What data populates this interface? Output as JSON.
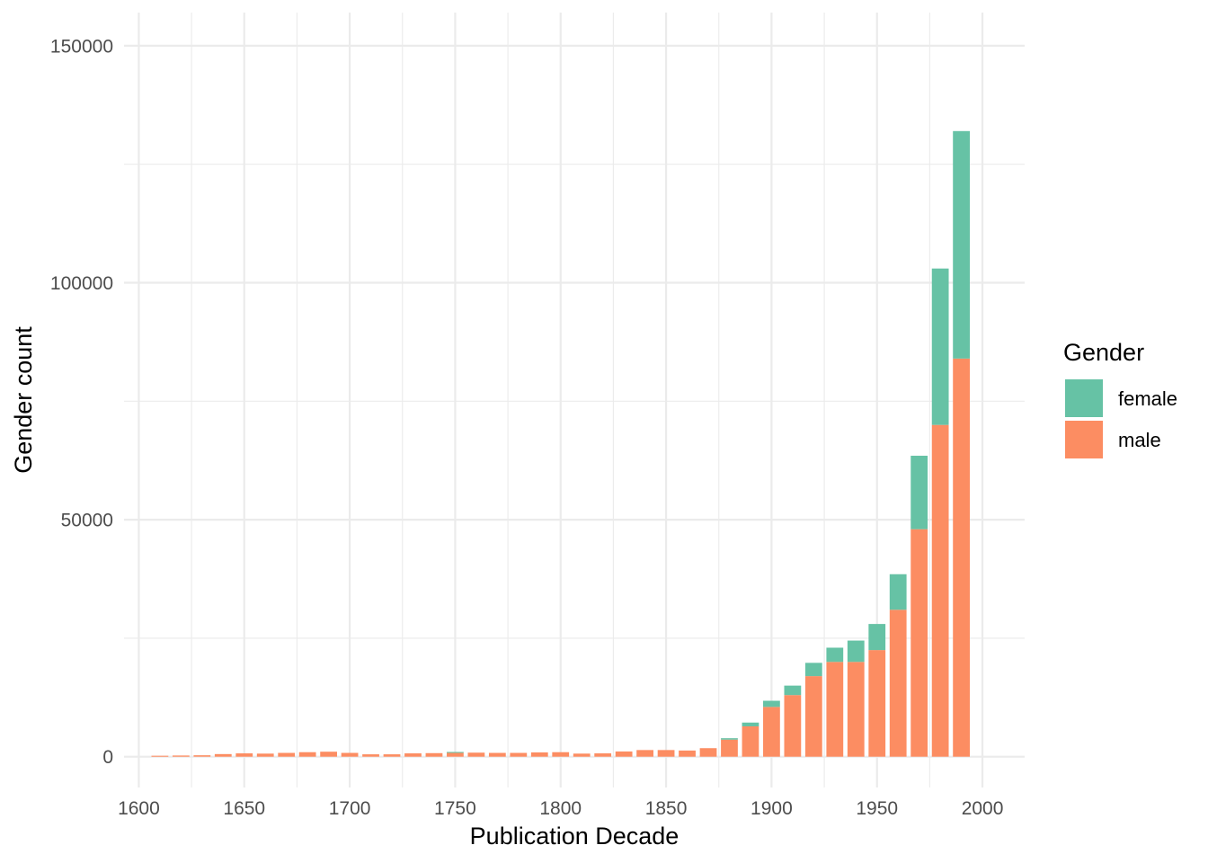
{
  "chart_data": {
    "type": "bar",
    "stacked": true,
    "xlabel": "Publication Decade",
    "ylabel": "Gender count",
    "xlim": [
      1593,
      2020
    ],
    "ylim": [
      -6500,
      157000
    ],
    "x_ticks": [
      1600,
      1650,
      1700,
      1750,
      1800,
      1850,
      1900,
      1950,
      2000
    ],
    "y_ticks": [
      0,
      50000,
      100000,
      150000
    ],
    "grid": true,
    "legend": {
      "title": "Gender",
      "position": "right"
    },
    "bar_width": 8,
    "x": [
      1610,
      1620,
      1630,
      1640,
      1650,
      1660,
      1670,
      1680,
      1690,
      1700,
      1710,
      1720,
      1730,
      1740,
      1750,
      1760,
      1770,
      1780,
      1790,
      1800,
      1810,
      1820,
      1830,
      1840,
      1850,
      1860,
      1870,
      1880,
      1890,
      1900,
      1910,
      1920,
      1930,
      1940,
      1950,
      1960,
      1970,
      1980,
      1990
    ],
    "series": [
      {
        "name": "male",
        "color": "#FC8D62",
        "values": [
          200,
          250,
          300,
          550,
          700,
          650,
          800,
          950,
          1050,
          800,
          500,
          500,
          700,
          750,
          800,
          850,
          800,
          800,
          900,
          950,
          650,
          700,
          1100,
          1400,
          1400,
          1300,
          1800,
          3600,
          6400,
          10500,
          13000,
          17000,
          20000,
          20000,
          22500,
          31000,
          48000,
          70000,
          84000
        ]
      },
      {
        "name": "female",
        "color": "#66C2A5",
        "values": [
          0,
          0,
          0,
          0,
          0,
          0,
          0,
          0,
          0,
          0,
          0,
          0,
          0,
          0,
          200,
          0,
          0,
          0,
          0,
          0,
          0,
          0,
          0,
          0,
          0,
          0,
          0,
          300,
          800,
          1300,
          2000,
          2800,
          3000,
          4500,
          5500,
          7500,
          15500,
          33000,
          48000
        ]
      }
    ]
  }
}
